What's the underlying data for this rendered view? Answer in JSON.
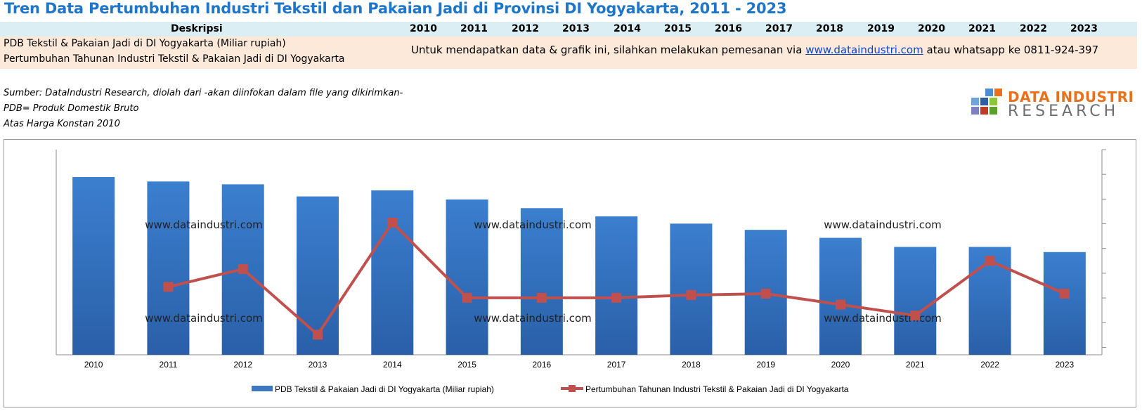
{
  "title": "Tren Data Pertumbuhan Industri Tekstil dan Pakaian Jadi di Provinsi DI Yogyakarta, 2011 - 2023",
  "table": {
    "desc_header": "Deskripsi",
    "years": [
      "2010",
      "2011",
      "2012",
      "2013",
      "2014",
      "2015",
      "2016",
      "2017",
      "2018",
      "2019",
      "2020",
      "2021",
      "2022",
      "2023"
    ],
    "row1": "PDB Tekstil & Pakaian Jadi di DI Yogyakarta (Miliar rupiah)",
    "row2": "Pertumbuhan Tahunan Industri Tekstil & Pakaian Jadi di DI Yogyakarta",
    "note_prefix": "Untuk mendapatkan data & grafik ini, silahkan melakukan pemesanan via ",
    "note_link": "www.dataindustri.com",
    "note_suffix": " atau whatsapp ke 0811-924-397"
  },
  "source": {
    "line1": "Sumber: DataIndustri Research, diolah dari -akan diinfokan dalam file yang dikirimkan-",
    "line2": "PDB= Produk Domestik Bruto",
    "line3": "Atas Harga Konstan 2010"
  },
  "logo": {
    "line1": "DATA INDUSTRI",
    "line2": "RESEARCH"
  },
  "watermark": "www.dataindustri.com",
  "colors": {
    "bar": "#3a78c3",
    "line": "#c0504d",
    "title": "#1f75c8",
    "header_bg": "#dbeef4",
    "row_bg": "#fde9d9"
  },
  "chart_data": {
    "type": "bar+line",
    "categories": [
      "2010",
      "2011",
      "2012",
      "2013",
      "2014",
      "2015",
      "2016",
      "2017",
      "2018",
      "2019",
      "2020",
      "2021",
      "2022",
      "2023"
    ],
    "series": [
      {
        "name": "PDB Tekstil & Pakaian Jadi di DI Yogyakarta (Miliar rupiah)",
        "type": "bar",
        "values": [
          100,
          97.5,
          95.9,
          89.1,
          92.5,
          87.4,
          82.5,
          77.9,
          73.8,
          70.3,
          65.8,
          60.7,
          60.7,
          57.8
        ]
      },
      {
        "name": "Pertumbuhan Tahunan Industri Tekstil & Pakaian Jadi di DI Yogyakarta",
        "type": "line",
        "axis": "secondary",
        "values": [
          null,
          2.3,
          3.6,
          -1.2,
          7.0,
          1.5,
          1.5,
          1.5,
          1.7,
          1.8,
          1.0,
          0.2,
          4.2,
          1.8
        ]
      }
    ],
    "xlabel": "",
    "ylabel": "",
    "grid": false,
    "legend": "bottom"
  }
}
